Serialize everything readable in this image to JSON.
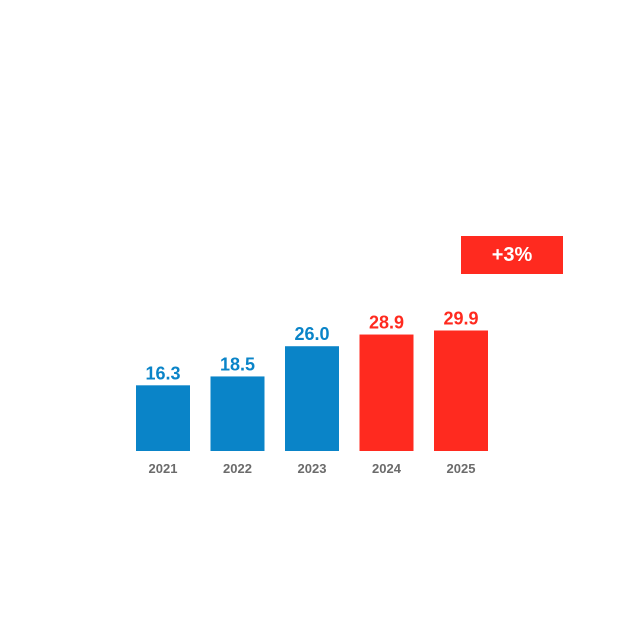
{
  "badge": {
    "label": "+3%",
    "color": "#ff2a1f"
  },
  "chart_data": {
    "type": "bar",
    "categories": [
      "2021",
      "2022",
      "2023",
      "2024",
      "2025"
    ],
    "values": [
      16.3,
      18.5,
      26.0,
      28.9,
      29.9
    ],
    "value_labels": [
      "16.3",
      "18.5",
      "26.0",
      "28.9",
      "29.9"
    ],
    "bar_colors": [
      "#0a84c8",
      "#0a84c8",
      "#0a84c8",
      "#ff2a1f",
      "#ff2a1f"
    ],
    "title": "",
    "xlabel": "",
    "ylabel": "",
    "ylim": [
      0,
      30
    ],
    "grid": false,
    "legend": "none"
  }
}
